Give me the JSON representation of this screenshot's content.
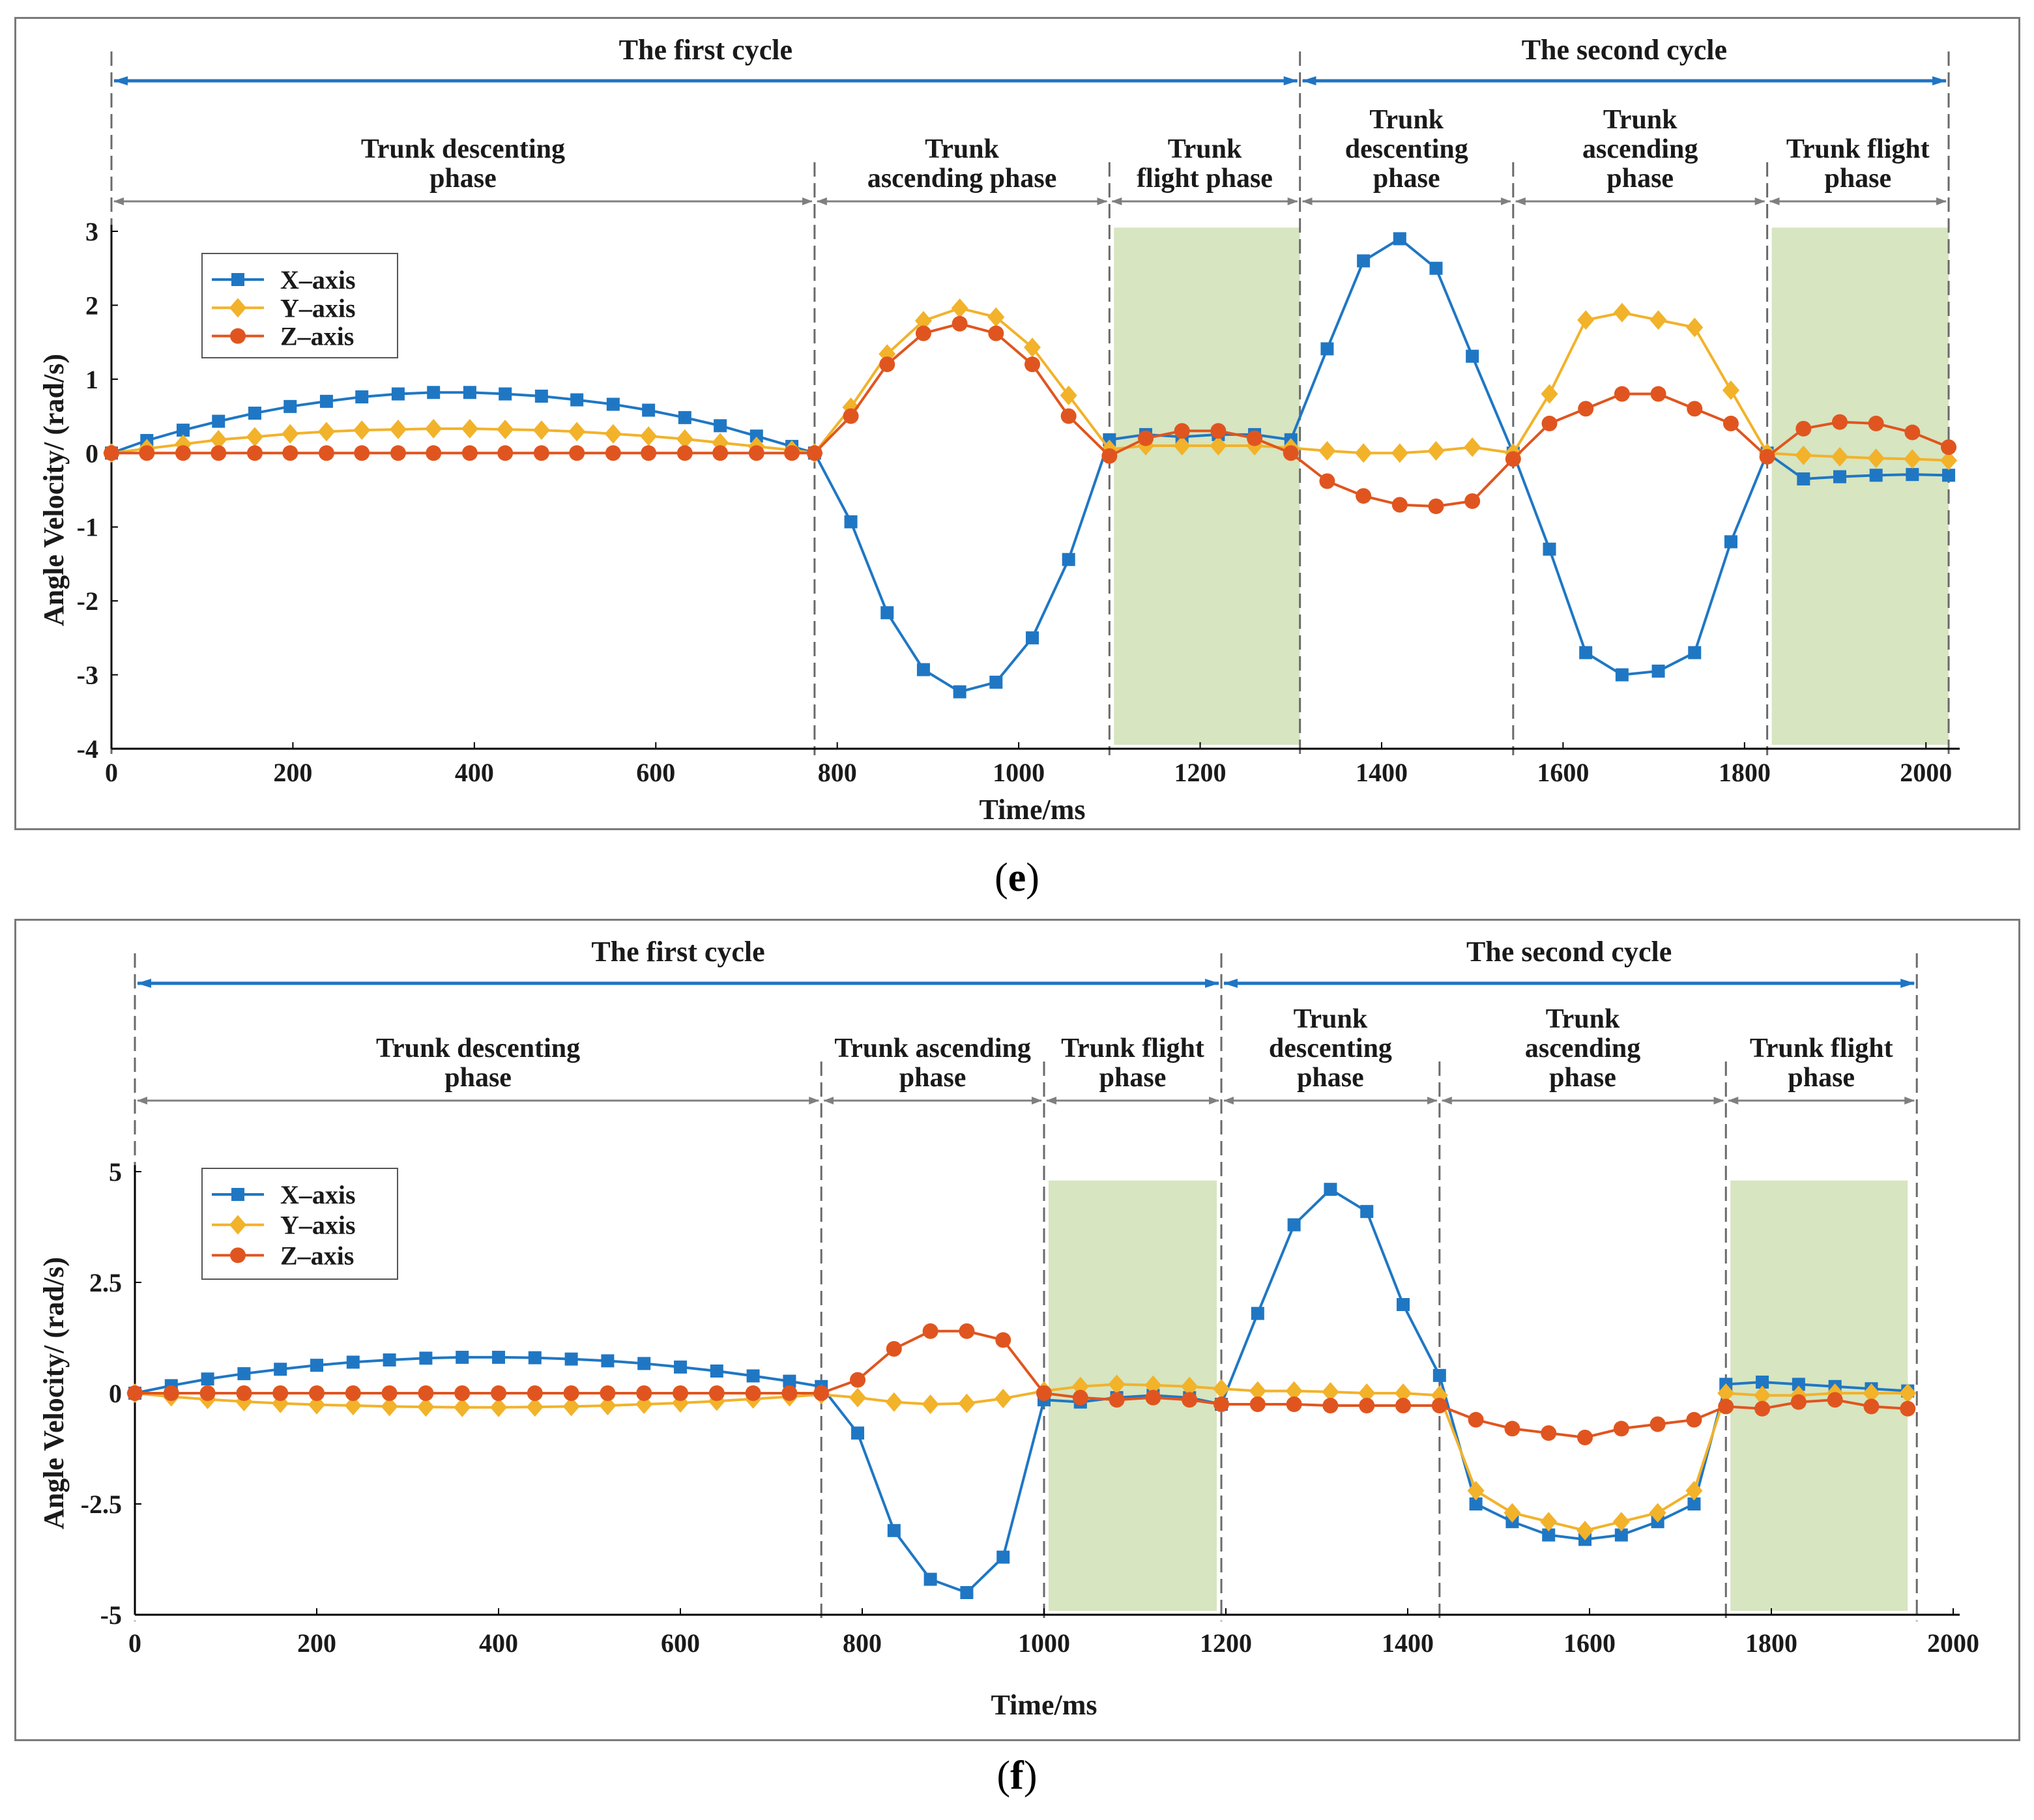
{
  "captions": {
    "e": "e",
    "f": "f"
  },
  "legend_labels": [
    "X–axis",
    "Y–axis",
    "Z–axis"
  ],
  "colors": {
    "x": "#1f77c4",
    "y": "#f2b22a",
    "z": "#e0551f",
    "arrow": "#1f74c4",
    "phase_arrow": "#7f7f7f",
    "flight": "#d7e5c0"
  },
  "chart_data": [
    {
      "id": "e",
      "type": "line",
      "xlabel": "Time/ms",
      "ylabel": "Angle Velocity/   (rad/s)",
      "xlim": [
        0,
        2030
      ],
      "ylim": [
        -4,
        3
      ],
      "xticks": [
        0,
        200,
        400,
        600,
        800,
        1000,
        1200,
        1400,
        1600,
        1800,
        2000
      ],
      "yticks": [
        3,
        2,
        1,
        0,
        -1,
        -2,
        -3,
        -4
      ],
      "ytick_labels": [
        "3",
        "2",
        "1",
        "0",
        "-1",
        "-2",
        "-3",
        "-4"
      ],
      "cycles": [
        {
          "label": "The first cycle",
          "start": 0,
          "end": 1310
        },
        {
          "label": "The second cycle",
          "start": 1310,
          "end": 2025
        }
      ],
      "phases": [
        {
          "label": [
            "Trunk descenting",
            "phase"
          ],
          "start": 0,
          "end": 775
        },
        {
          "label": [
            "Trunk",
            "ascending phase"
          ],
          "start": 775,
          "end": 1100
        },
        {
          "label": [
            "Trunk",
            "flight phase"
          ],
          "start": 1100,
          "end": 1310
        },
        {
          "label": [
            "Trunk",
            "descenting",
            "phase"
          ],
          "start": 1310,
          "end": 1545
        },
        {
          "label": [
            "Trunk",
            "ascending",
            "phase"
          ],
          "start": 1545,
          "end": 1825
        },
        {
          "label": [
            "Trunk flight",
            "phase"
          ],
          "start": 1825,
          "end": 2025
        }
      ],
      "flight_regions": [
        [
          1105,
          1310
        ],
        [
          1830,
          2025
        ]
      ],
      "flight_top": 3.05,
      "series": [
        {
          "name": "X–axis",
          "marker": "square",
          "x": [
            0,
            39,
            79,
            118,
            158,
            197,
            237,
            276,
            316,
            355,
            395,
            434,
            474,
            513,
            553,
            592,
            632,
            671,
            711,
            750,
            775,
            815,
            855,
            895,
            935,
            975,
            1015,
            1055,
            1100,
            1140,
            1180,
            1220,
            1260,
            1300,
            1340,
            1380,
            1420,
            1460,
            1500,
            1545,
            1585,
            1625,
            1665,
            1705,
            1745,
            1785,
            1825,
            1865,
            1905,
            1945,
            1985,
            2025
          ],
          "values": [
            0,
            0.17,
            0.31,
            0.43,
            0.54,
            0.63,
            0.7,
            0.76,
            0.8,
            0.82,
            0.82,
            0.8,
            0.77,
            0.72,
            0.66,
            0.58,
            0.48,
            0.37,
            0.23,
            0.09,
            0,
            -0.93,
            -2.16,
            -2.93,
            -3.23,
            -3.1,
            -2.5,
            -1.44,
            0.18,
            0.25,
            0.22,
            0.25,
            0.25,
            0.18,
            1.41,
            2.6,
            2.9,
            2.5,
            1.31,
            0,
            -1.3,
            -2.7,
            -3.0,
            -2.95,
            -2.7,
            -1.2,
            0,
            -0.35,
            -0.32,
            -0.3,
            -0.29,
            -0.3
          ]
        },
        {
          "name": "Y–axis",
          "marker": "diamond",
          "x": [
            0,
            39,
            79,
            118,
            158,
            197,
            237,
            276,
            316,
            355,
            395,
            434,
            474,
            513,
            553,
            592,
            632,
            671,
            711,
            750,
            775,
            815,
            855,
            895,
            935,
            975,
            1015,
            1055,
            1100,
            1140,
            1180,
            1220,
            1260,
            1300,
            1340,
            1380,
            1420,
            1460,
            1500,
            1545,
            1585,
            1625,
            1665,
            1705,
            1745,
            1785,
            1825,
            1865,
            1905,
            1945,
            1985,
            2025
          ],
          "values": [
            0,
            0.06,
            0.12,
            0.18,
            0.22,
            0.26,
            0.29,
            0.31,
            0.32,
            0.33,
            0.33,
            0.32,
            0.31,
            0.29,
            0.26,
            0.23,
            0.19,
            0.14,
            0.09,
            0.04,
            0,
            0.62,
            1.34,
            1.79,
            1.96,
            1.84,
            1.43,
            0.78,
            0.05,
            0.1,
            0.1,
            0.1,
            0.1,
            0.07,
            0.03,
            0,
            0,
            0.03,
            0.08,
            0,
            0.8,
            1.8,
            1.9,
            1.8,
            1.7,
            0.85,
            0,
            -0.03,
            -0.05,
            -0.07,
            -0.08,
            -0.1
          ]
        },
        {
          "name": "Z–axis",
          "marker": "circle",
          "x": [
            0,
            39,
            79,
            118,
            158,
            197,
            237,
            276,
            316,
            355,
            395,
            434,
            474,
            513,
            553,
            592,
            632,
            671,
            711,
            750,
            775,
            815,
            855,
            895,
            935,
            975,
            1015,
            1055,
            1100,
            1140,
            1180,
            1220,
            1260,
            1300,
            1340,
            1380,
            1420,
            1460,
            1500,
            1545,
            1585,
            1625,
            1665,
            1705,
            1745,
            1785,
            1825,
            1865,
            1905,
            1945,
            1985,
            2025
          ],
          "values": [
            0,
            0,
            0,
            0,
            0,
            0,
            0,
            0,
            0,
            0,
            0,
            0,
            0,
            0,
            0,
            0,
            0,
            0,
            0,
            0,
            0,
            0.5,
            1.2,
            1.62,
            1.75,
            1.62,
            1.2,
            0.5,
            -0.04,
            0.2,
            0.3,
            0.3,
            0.2,
            0,
            -0.38,
            -0.58,
            -0.7,
            -0.72,
            -0.65,
            -0.08,
            0.4,
            0.6,
            0.8,
            0.8,
            0.6,
            0.4,
            -0.05,
            0.33,
            0.42,
            0.4,
            0.28,
            0.08
          ]
        }
      ]
    },
    {
      "id": "f",
      "type": "line",
      "xlabel": "Time/ms",
      "ylabel": "Angle Velocity/   (rad/s)",
      "xlim": [
        0,
        2000
      ],
      "ylim": [
        -5,
        5
      ],
      "xticks": [
        0,
        200,
        400,
        600,
        800,
        1000,
        1200,
        1400,
        1600,
        1800,
        2000
      ],
      "yticks": [
        5,
        2.5,
        0,
        -2.5,
        -5
      ],
      "ytick_labels": [
        "5",
        "2.5",
        "0",
        "-2.5",
        "-5"
      ],
      "cycles": [
        {
          "label": "The first cycle",
          "start": 0,
          "end": 1195
        },
        {
          "label": "The second cycle",
          "start": 1195,
          "end": 1960
        }
      ],
      "phases": [
        {
          "label": [
            "Trunk descenting",
            "phase"
          ],
          "start": 0,
          "end": 755
        },
        {
          "label": [
            "Trunk ascending",
            "phase"
          ],
          "start": 755,
          "end": 1000
        },
        {
          "label": [
            "Trunk flight",
            "phase"
          ],
          "start": 1000,
          "end": 1195
        },
        {
          "label": [
            "Trunk",
            "descenting",
            "phase"
          ],
          "start": 1195,
          "end": 1435
        },
        {
          "label": [
            "Trunk",
            "ascending",
            "phase"
          ],
          "start": 1435,
          "end": 1750
        },
        {
          "label": [
            "Trunk flight",
            "phase"
          ],
          "start": 1750,
          "end": 1960
        }
      ],
      "flight_regions": [
        [
          1005,
          1190
        ],
        [
          1755,
          1950
        ]
      ],
      "flight_top": 4.8,
      "series": [
        {
          "name": "X–axis",
          "marker": "square",
          "x": [
            0,
            40,
            80,
            120,
            160,
            200,
            240,
            280,
            320,
            360,
            400,
            440,
            480,
            520,
            560,
            600,
            640,
            680,
            720,
            755,
            795,
            835,
            875,
            915,
            955,
            1000,
            1040,
            1080,
            1120,
            1160,
            1195,
            1235,
            1275,
            1315,
            1355,
            1395,
            1435,
            1475,
            1515,
            1555,
            1595,
            1635,
            1675,
            1715,
            1750,
            1790,
            1830,
            1870,
            1910,
            1950
          ],
          "values": [
            0,
            0.17,
            0.32,
            0.44,
            0.54,
            0.63,
            0.7,
            0.75,
            0.79,
            0.81,
            0.81,
            0.8,
            0.77,
            0.73,
            0.67,
            0.59,
            0.5,
            0.39,
            0.27,
            0.15,
            -0.9,
            -3.1,
            -4.2,
            -4.5,
            -3.7,
            -0.15,
            -0.2,
            -0.1,
            -0.05,
            -0.1,
            -0.25,
            1.8,
            3.8,
            4.6,
            4.1,
            2.0,
            0.4,
            -2.5,
            -2.9,
            -3.2,
            -3.3,
            -3.2,
            -2.9,
            -2.5,
            0.2,
            0.25,
            0.2,
            0.15,
            0.1,
            0.05
          ]
        },
        {
          "name": "Y–axis",
          "marker": "diamond",
          "x": [
            0,
            40,
            80,
            120,
            160,
            200,
            240,
            280,
            320,
            360,
            400,
            440,
            480,
            520,
            560,
            600,
            640,
            680,
            720,
            755,
            795,
            835,
            875,
            915,
            955,
            1000,
            1040,
            1080,
            1120,
            1160,
            1195,
            1235,
            1275,
            1315,
            1355,
            1395,
            1435,
            1475,
            1515,
            1555,
            1595,
            1635,
            1675,
            1715,
            1750,
            1790,
            1830,
            1870,
            1910,
            1950
          ],
          "values": [
            0,
            -0.08,
            -0.14,
            -0.19,
            -0.23,
            -0.26,
            -0.28,
            -0.3,
            -0.31,
            -0.32,
            -0.32,
            -0.31,
            -0.3,
            -0.28,
            -0.25,
            -0.22,
            -0.18,
            -0.13,
            -0.08,
            -0.03,
            -0.1,
            -0.2,
            -0.25,
            -0.23,
            -0.12,
            0.05,
            0.15,
            0.2,
            0.18,
            0.15,
            0.1,
            0.05,
            0.05,
            0.03,
            0,
            0,
            -0.05,
            -2.2,
            -2.7,
            -2.9,
            -3.1,
            -2.9,
            -2.7,
            -2.2,
            0,
            -0.05,
            -0.05,
            0,
            0,
            0
          ]
        },
        {
          "name": "Z–axis",
          "marker": "circle",
          "x": [
            0,
            40,
            80,
            120,
            160,
            200,
            240,
            280,
            320,
            360,
            400,
            440,
            480,
            520,
            560,
            600,
            640,
            680,
            720,
            755,
            795,
            835,
            875,
            915,
            955,
            1000,
            1040,
            1080,
            1120,
            1160,
            1195,
            1235,
            1275,
            1315,
            1355,
            1395,
            1435,
            1475,
            1515,
            1555,
            1595,
            1635,
            1675,
            1715,
            1750,
            1790,
            1830,
            1870,
            1910,
            1950
          ],
          "values": [
            0,
            0,
            0,
            0,
            0,
            0,
            0,
            0,
            0,
            0,
            0,
            0,
            0,
            0,
            0,
            0,
            0,
            0,
            0,
            0,
            0.3,
            1.0,
            1.4,
            1.4,
            1.2,
            0,
            -0.1,
            -0.15,
            -0.1,
            -0.15,
            -0.25,
            -0.25,
            -0.25,
            -0.28,
            -0.28,
            -0.28,
            -0.28,
            -0.6,
            -0.8,
            -0.9,
            -1.0,
            -0.8,
            -0.7,
            -0.6,
            -0.3,
            -0.35,
            -0.2,
            -0.15,
            -0.3,
            -0.35
          ]
        }
      ]
    }
  ]
}
